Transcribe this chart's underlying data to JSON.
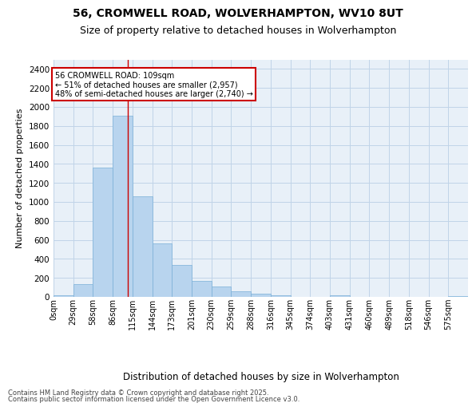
{
  "title1": "56, CROMWELL ROAD, WOLVERHAMPTON, WV10 8UT",
  "title2": "Size of property relative to detached houses in Wolverhampton",
  "xlabel": "Distribution of detached houses by size in Wolverhampton",
  "ylabel": "Number of detached properties",
  "footer1": "Contains HM Land Registry data © Crown copyright and database right 2025.",
  "footer2": "Contains public sector information licensed under the Open Government Licence v3.0.",
  "bar_labels": [
    "0sqm",
    "29sqm",
    "58sqm",
    "86sqm",
    "115sqm",
    "144sqm",
    "173sqm",
    "201sqm",
    "230sqm",
    "259sqm",
    "288sqm",
    "316sqm",
    "345sqm",
    "374sqm",
    "403sqm",
    "431sqm",
    "460sqm",
    "489sqm",
    "518sqm",
    "546sqm",
    "575sqm"
  ],
  "bar_values": [
    15,
    135,
    1360,
    1910,
    1060,
    560,
    335,
    170,
    110,
    60,
    30,
    20,
    0,
    0,
    15,
    0,
    0,
    0,
    0,
    0,
    10
  ],
  "bar_color": "#b8d4ee",
  "bar_edge_color": "#7ab0d8",
  "grid_color": "#c0d4e8",
  "bg_color": "#e8f0f8",
  "annotation_line1": "56 CROMWELL ROAD: 109sqm",
  "annotation_line2": "← 51% of detached houses are smaller (2,957)",
  "annotation_line3": "48% of semi-detached houses are larger (2,740) →",
  "annotation_box_facecolor": "#ffffff",
  "annotation_box_edgecolor": "#cc0000",
  "vline_x": 109,
  "vline_color": "#cc0000",
  "ylim": [
    0,
    2500
  ],
  "yticks": [
    0,
    200,
    400,
    600,
    800,
    1000,
    1200,
    1400,
    1600,
    1800,
    2000,
    2200,
    2400
  ],
  "bin_width": 29,
  "fig_width": 6.0,
  "fig_height": 5.0,
  "fig_dpi": 100
}
